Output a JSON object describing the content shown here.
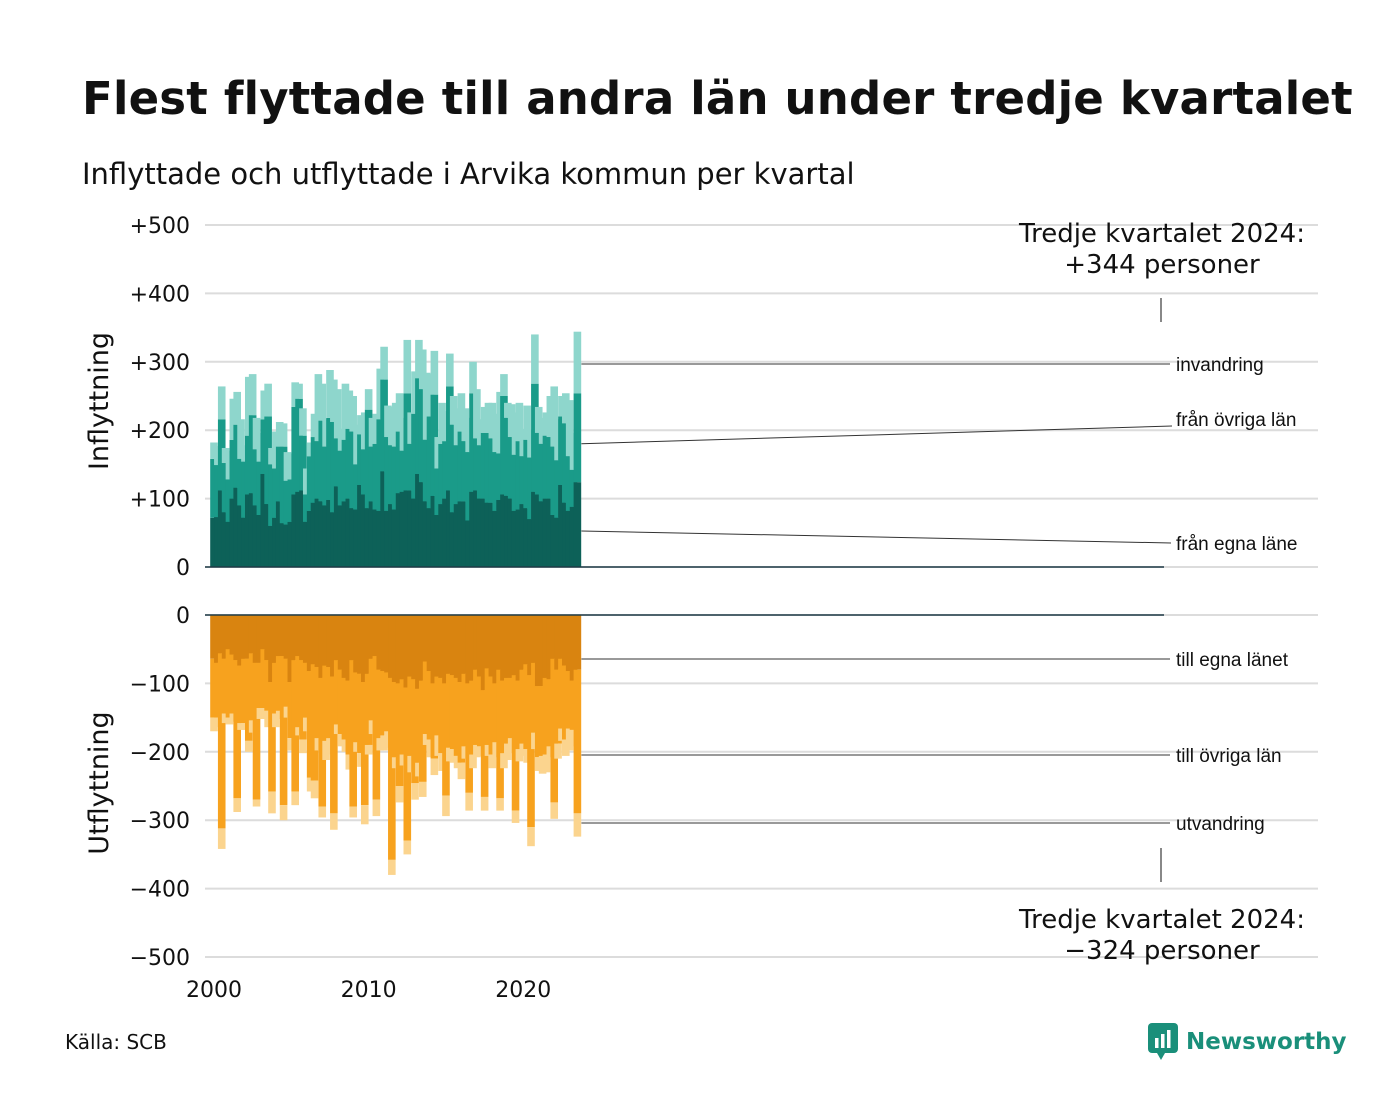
{
  "title": "Flest flyttade till andra län under tredje kvartalet",
  "subtitle": "Inflyttade och utflyttade i Arvika kommun per kvartal",
  "source": "Källa: SCB",
  "logo_text": "Newsworthy",
  "colors": {
    "in_own": "#0d6158",
    "in_other": "#1a9b89",
    "in_immig": "#8ed6cc",
    "out_own": "#d98410",
    "out_other": "#f7a21e",
    "out_emig": "#fbd48e",
    "grid": "#dcdcdc",
    "logo": "#1a8f7a"
  },
  "chart_data": {
    "type": "bar",
    "stacked": true,
    "x_start": "2000 Q1",
    "x_ticks": [
      "2000",
      "2010",
      "2020"
    ],
    "upper": {
      "ylabel": "Inflyttning",
      "ylim": [
        0,
        500
      ],
      "y_ticks": [
        "0",
        "+100",
        "+200",
        "+300",
        "+400",
        "+500"
      ],
      "series": [
        {
          "name": "från egna länet",
          "label": "från egna läne",
          "values": [
            72,
            73,
            112,
            80,
            66,
            100,
            116,
            90,
            72,
            106,
            108,
            90,
            76,
            136,
            92,
            60,
            72,
            96,
            64,
            62,
            66,
            106,
            110,
            112,
            66,
            82,
            94,
            100,
            96,
            90,
            98,
            80,
            118,
            90,
            96,
            100,
            86,
            84,
            120,
            106,
            86,
            96,
            84,
            82,
            140,
            82,
            92,
            84,
            108,
            110,
            112,
            112,
            100,
            136,
            124,
            96,
            86,
            104,
            76,
            92,
            100,
            112,
            80,
            92,
            96,
            96,
            68,
            110,
            112,
            100,
            100,
            94,
            94,
            82,
            98,
            106,
            104,
            100,
            82,
            84,
            92,
            86,
            70,
            110,
            106,
            96,
            100,
            100,
            76,
            72,
            120,
            94,
            82,
            88,
            124
          ]
        },
        {
          "name": "från övriga län",
          "label": "från övriga län",
          "values": [
            86,
            76,
            104,
            72,
            62,
            86,
            92,
            68,
            82,
            86,
            114,
            82,
            78,
            80,
            128,
            90,
            72,
            80,
            112,
            64,
            62,
            128,
            136,
            80,
            40,
            80,
            96,
            84,
            118,
            86,
            120,
            132,
            70,
            80,
            90,
            102,
            112,
            66,
            74,
            66,
            144,
            80,
            96,
            134,
            134,
            108,
            86,
            92,
            90,
            60,
            142,
            68,
            124,
            140,
            136,
            90,
            134,
            148,
            68,
            88,
            84,
            152,
            128,
            86,
            102,
            88,
            100,
            144,
            76,
            78,
            96,
            102,
            94,
            86,
            68,
            144,
            114,
            90,
            82,
            100,
            70,
            100,
            90,
            158,
            90,
            84,
            92,
            90,
            100,
            84,
            100,
            116,
            80,
            54,
            130
          ]
        },
        {
          "name": "invandring",
          "label": "invandring",
          "values": [
            24,
            28,
            48,
            22,
            42,
            60,
            48,
            58,
            24,
            86,
            60,
            46,
            42,
            42,
            48,
            24,
            54,
            36,
            34,
            42,
            38,
            36,
            22,
            40,
            38,
            20,
            34,
            98,
            54,
            40,
            70,
            62,
            72,
            32,
            82,
            56,
            52,
            58,
            28,
            54,
            30,
            42,
            44,
            74,
            48,
            46,
            56,
            64,
            56,
            48,
            78,
            46,
            62,
            56,
            58,
            98,
            62,
            64,
            46,
            60,
            44,
            48,
            42,
            54,
            56,
            48,
            50,
            46,
            72,
            38,
            38,
            44,
            52,
            56,
            90,
            32,
            22,
            48,
            62,
            56,
            40,
            50,
            40,
            72,
            38,
            38,
            34,
            60,
            88,
            60,
            30,
            44,
            82,
            54,
            90
          ]
        }
      ]
    },
    "lower": {
      "ylabel": "Utflyttning",
      "ylim": [
        -500,
        0
      ],
      "y_ticks": [
        "0",
        "−100",
        "−200",
        "−300",
        "−400",
        "−500"
      ],
      "series": [
        {
          "name": "till egna länet",
          "label": "till egna länet",
          "values": [
            64,
            70,
            56,
            64,
            50,
            58,
            66,
            74,
            64,
            64,
            56,
            70,
            70,
            50,
            66,
            98,
            70,
            60,
            60,
            64,
            98,
            66,
            60,
            66,
            70,
            82,
            72,
            76,
            92,
            74,
            76,
            90,
            66,
            80,
            92,
            96,
            66,
            84,
            86,
            98,
            86,
            64,
            60,
            80,
            82,
            84,
            92,
            98,
            100,
            94,
            106,
            90,
            94,
            108,
            96,
            68,
            82,
            100,
            90,
            92,
            100,
            86,
            88,
            92,
            98,
            86,
            100,
            96,
            80,
            90,
            110,
            78,
            90,
            100,
            80,
            96,
            92,
            92,
            88,
            96,
            80,
            72,
            88,
            70,
            104,
            104,
            92,
            94,
            64,
            80,
            64,
            74,
            82,
            96,
            80
          ]
        },
        {
          "name": "till övriga län",
          "label": "till övriga län",
          "values": [
            86,
            80,
            256,
            80,
            100,
            86,
            202,
            84,
            94,
            120,
            98,
            200,
            66,
            86,
            74,
            160,
            74,
            80,
            218,
            70,
            82,
            192,
            104,
            116,
            80,
            156,
            170,
            104,
            188,
            110,
            104,
            200,
            94,
            94,
            90,
            108,
            214,
            102,
            116,
            180,
            104,
            90,
            210,
            100,
            94,
            86,
            266,
            110,
            150,
            110,
            224,
            116,
            152,
            108,
            148,
            106,
            100,
            110,
            86,
            110,
            164,
            108,
            108,
            114,
            118,
            106,
            160,
            108,
            110,
            102,
            156,
            112,
            114,
            86,
            188,
            106,
            96,
            88,
            198,
            100,
            108,
            124,
            222,
            102,
            104,
            102,
            112,
            98,
            210,
            108,
            102,
            108,
            84,
            72,
            210
          ]
        },
        {
          "name": "utvandring",
          "label": "utvandring",
          "values": [
            20,
            14,
            30,
            14,
            10,
            12,
            20,
            10,
            10,
            16,
            18,
            10,
            16,
            16,
            24,
            32,
            20,
            12,
            22,
            16,
            18,
            20,
            12,
            20,
            20,
            20,
            26,
            18,
            16,
            28,
            24,
            24,
            14,
            18,
            18,
            22,
            16,
            14,
            20,
            28,
            14,
            20,
            24,
            18,
            22,
            24,
            22,
            16,
            24,
            16,
            20,
            24,
            24,
            20,
            22,
            16,
            26,
            24,
            30,
            26,
            30,
            20,
            20,
            18,
            24,
            18,
            26,
            20,
            18,
            14,
            20,
            16,
            20,
            22,
            18,
            22,
            24,
            22,
            18,
            18,
            18,
            20,
            28,
            24,
            20,
            26,
            26,
            16,
            24,
            22,
            18,
            24,
            32,
            24,
            34
          ]
        }
      ]
    },
    "annotation_top": [
      "Tredje kvartalet 2024:",
      "+344 personer"
    ],
    "annotation_bottom": [
      "Tredje kvartalet 2024:",
      "−324 personer"
    ]
  }
}
